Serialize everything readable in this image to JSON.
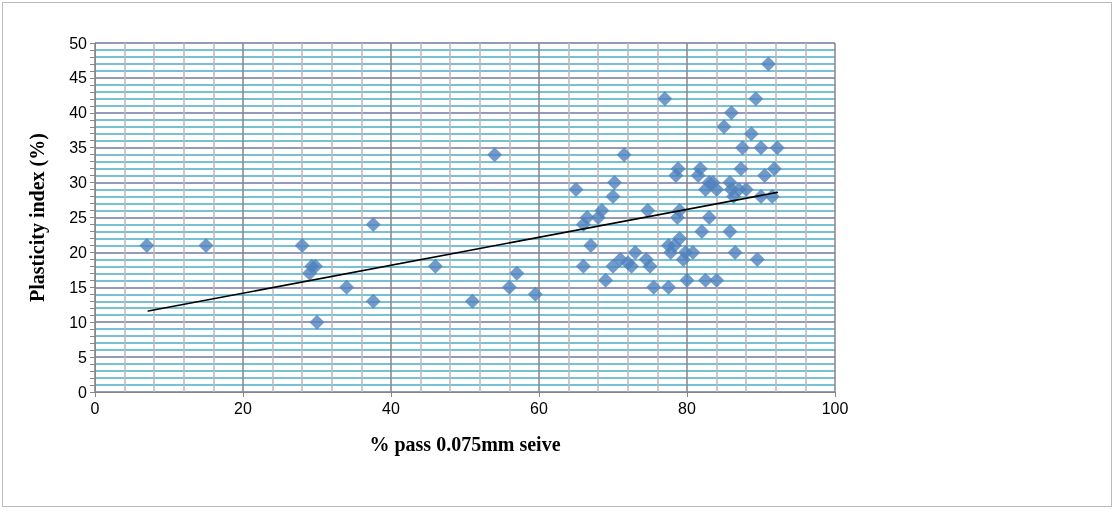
{
  "chart_data": {
    "type": "scatter",
    "xlabel": "% pass 0.075mm seive",
    "ylabel": "Plasticity index (%)",
    "xlim": [
      0,
      100
    ],
    "ylim": [
      0,
      50
    ],
    "xticks": [
      0,
      20,
      40,
      60,
      80,
      100
    ],
    "yticks": [
      0,
      {
        "value": 1,
        "label": null
      },
      {
        "value": 2,
        "label": null
      },
      {
        "value": 3,
        "label": null
      },
      {
        "value": 4,
        "label": null
      },
      5,
      {
        "value": 6,
        "label": null
      },
      {
        "value": 7,
        "label": null
      },
      {
        "value": 8,
        "label": null
      },
      {
        "value": 9,
        "label": null
      },
      10,
      {
        "value": 11,
        "label": null
      },
      {
        "value": 12,
        "label": null
      },
      {
        "value": 13,
        "label": null
      },
      {
        "value": 14,
        "label": null
      },
      15,
      {
        "value": 16,
        "label": null
      },
      {
        "value": 17,
        "label": null
      },
      {
        "value": 18,
        "label": null
      },
      {
        "value": 19,
        "label": null
      },
      20,
      {
        "value": 21,
        "label": null
      },
      {
        "value": 22,
        "label": null
      },
      {
        "value": 23,
        "label": null
      },
      {
        "value": 24,
        "label": null
      },
      25,
      {
        "value": 26,
        "label": null
      },
      {
        "value": 27,
        "label": null
      },
      {
        "value": 28,
        "label": null
      },
      {
        "value": 29,
        "label": null
      },
      30,
      {
        "value": 31,
        "label": null
      },
      {
        "value": 32,
        "label": null
      },
      {
        "value": 33,
        "label": null
      },
      {
        "value": 34,
        "label": null
      },
      35,
      {
        "value": 36,
        "label": null
      },
      {
        "value": 37,
        "label": null
      },
      {
        "value": 38,
        "label": null
      },
      {
        "value": 39,
        "label": null
      },
      40,
      {
        "value": 41,
        "label": null
      },
      {
        "value": 42,
        "label": null
      },
      {
        "value": 43,
        "label": null
      },
      {
        "value": 44,
        "label": null
      },
      45,
      {
        "value": 46,
        "label": null
      },
      {
        "value": 47,
        "label": null
      },
      {
        "value": 48,
        "label": null
      },
      {
        "value": 49,
        "label": null
      },
      50
    ],
    "grid": true,
    "marker": "diamond",
    "series": [
      {
        "type": "scatter",
        "color": "#4f81bd",
        "x": [
          7,
          15,
          28,
          29,
          29.3,
          29.8,
          30,
          34,
          37.6,
          37.6,
          46,
          51,
          54,
          56,
          57,
          59.5,
          65,
          66,
          66.5,
          66,
          67,
          68,
          68.5,
          69,
          70,
          70,
          70.2,
          71,
          71.5,
          72,
          72.5,
          73,
          74.5,
          74.7,
          75,
          75.5,
          77,
          77.5,
          77.5,
          77.8,
          78.3,
          78.5,
          78.8,
          78.7,
          79,
          79,
          79.5,
          79.8,
          80,
          80.8,
          81.5,
          81.8,
          82,
          82.5,
          82.5,
          83,
          83,
          83.5,
          84,
          84,
          85,
          85.8,
          85.8,
          86,
          86,
          86.3,
          86.5,
          87,
          87.3,
          87.5,
          88,
          88.7,
          89.3,
          89.5,
          90,
          90,
          90.5,
          91,
          91.5,
          91.8,
          92.2
        ],
        "values": [
          21,
          21,
          21,
          17,
          18,
          18,
          10,
          15,
          24,
          13,
          18,
          13,
          34,
          15,
          17,
          14,
          29,
          24,
          25,
          18,
          21,
          25,
          26,
          16,
          18,
          28,
          30,
          19,
          34,
          18.5,
          18,
          20,
          19,
          26,
          18,
          15,
          42,
          15,
          21,
          20,
          21,
          31,
          32,
          25,
          26,
          22,
          19,
          20,
          16,
          20,
          31,
          32,
          23,
          16,
          29,
          25,
          30,
          30,
          29,
          16,
          38,
          23,
          30,
          40,
          29,
          28,
          20,
          29,
          32,
          35,
          29,
          37,
          42,
          19,
          28,
          35,
          31,
          47,
          28,
          32,
          35
        ]
      },
      {
        "type": "line",
        "color": "#000000",
        "line_style": "solid",
        "marker": "none",
        "x": [
          7.2,
          92.2
        ],
        "values": [
          11.6,
          28.6
        ]
      }
    ]
  }
}
